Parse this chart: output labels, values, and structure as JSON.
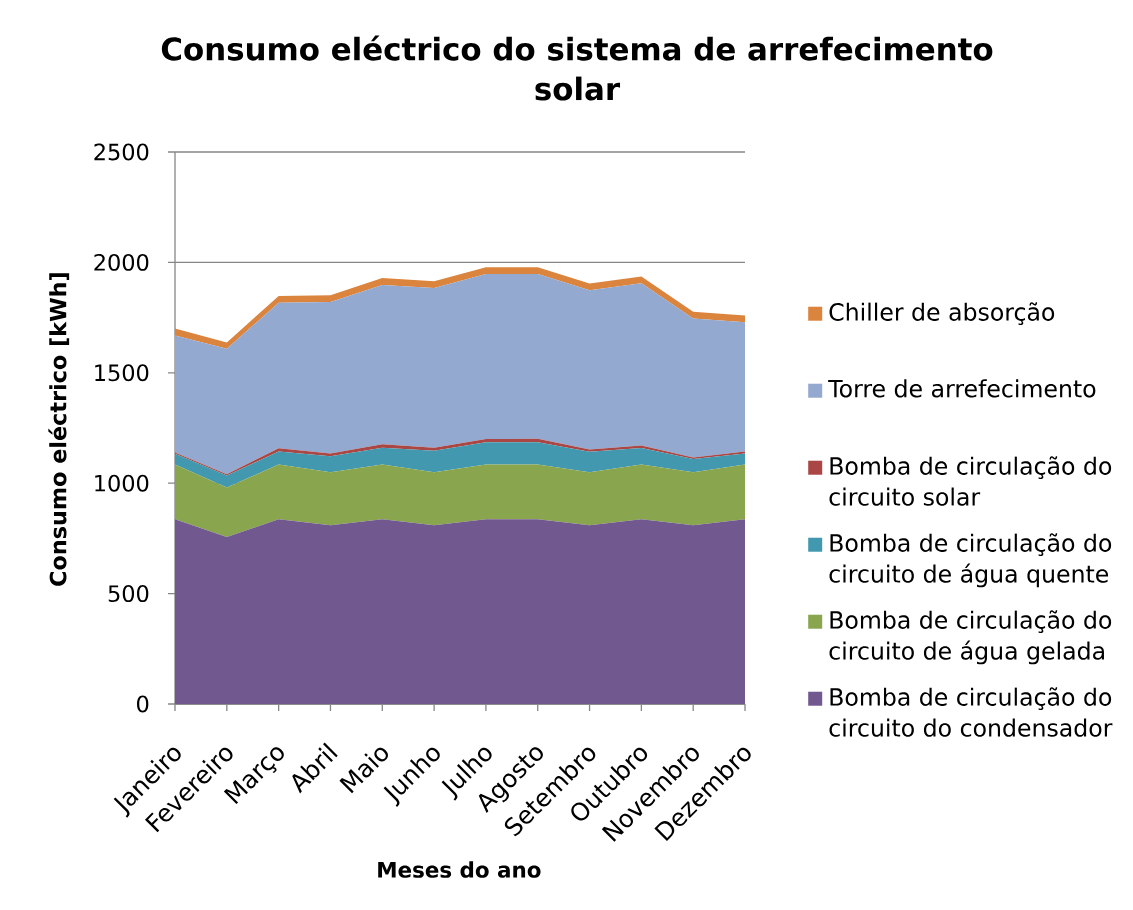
{
  "chart_data": {
    "type": "area",
    "title": "Consumo eléctrico do sistema de arrefecimento solar",
    "xlabel": "Meses do ano",
    "ylabel": "Consumo eléctrico [kWh]",
    "categories": [
      "Janeiro",
      "Fevereiro",
      "Março",
      "Abril",
      "Maio",
      "Junho",
      "Julho",
      "Agosto",
      "Setembro",
      "Outubro",
      "Novembro",
      "Dezembro"
    ],
    "stacked": true,
    "ylim": [
      0,
      2500
    ],
    "yticks": [
      0,
      500,
      1000,
      1500,
      2000,
      2500
    ],
    "grid": "y",
    "legend": "right",
    "series": [
      {
        "name": "Bomba de circulação do circuito do condensador",
        "color": "#71588f",
        "values": [
          837,
          756,
          837,
          810,
          837,
          810,
          837,
          837,
          810,
          837,
          810,
          837
        ]
      },
      {
        "name": "Bomba de circulação do circuito de água gelada",
        "color": "#89a54e",
        "values": [
          248,
          224,
          248,
          240,
          248,
          240,
          248,
          248,
          240,
          248,
          240,
          248
        ]
      },
      {
        "name": "Bomba de circulação do circuito de água quente",
        "color": "#4198af",
        "values": [
          48,
          55,
          58,
          72,
          76,
          97,
          100,
          100,
          92,
          74,
          60,
          50
        ]
      },
      {
        "name": "Bomba de circulação do circuito solar",
        "color": "#aa4643",
        "values": [
          6,
          6,
          15,
          12,
          15,
          13,
          15,
          16,
          11,
          12,
          6,
          8
        ]
      },
      {
        "name": "Torre de arrefecimento",
        "color": "#93a9cf",
        "values": [
          530,
          568,
          659,
          687,
          722,
          724,
          747,
          746,
          721,
          734,
          630,
          586
        ]
      },
      {
        "name": "Chiller de absorção",
        "color": "#db843d",
        "values": [
          31,
          28,
          31,
          30,
          31,
          30,
          31,
          31,
          30,
          31,
          30,
          31
        ]
      }
    ]
  }
}
